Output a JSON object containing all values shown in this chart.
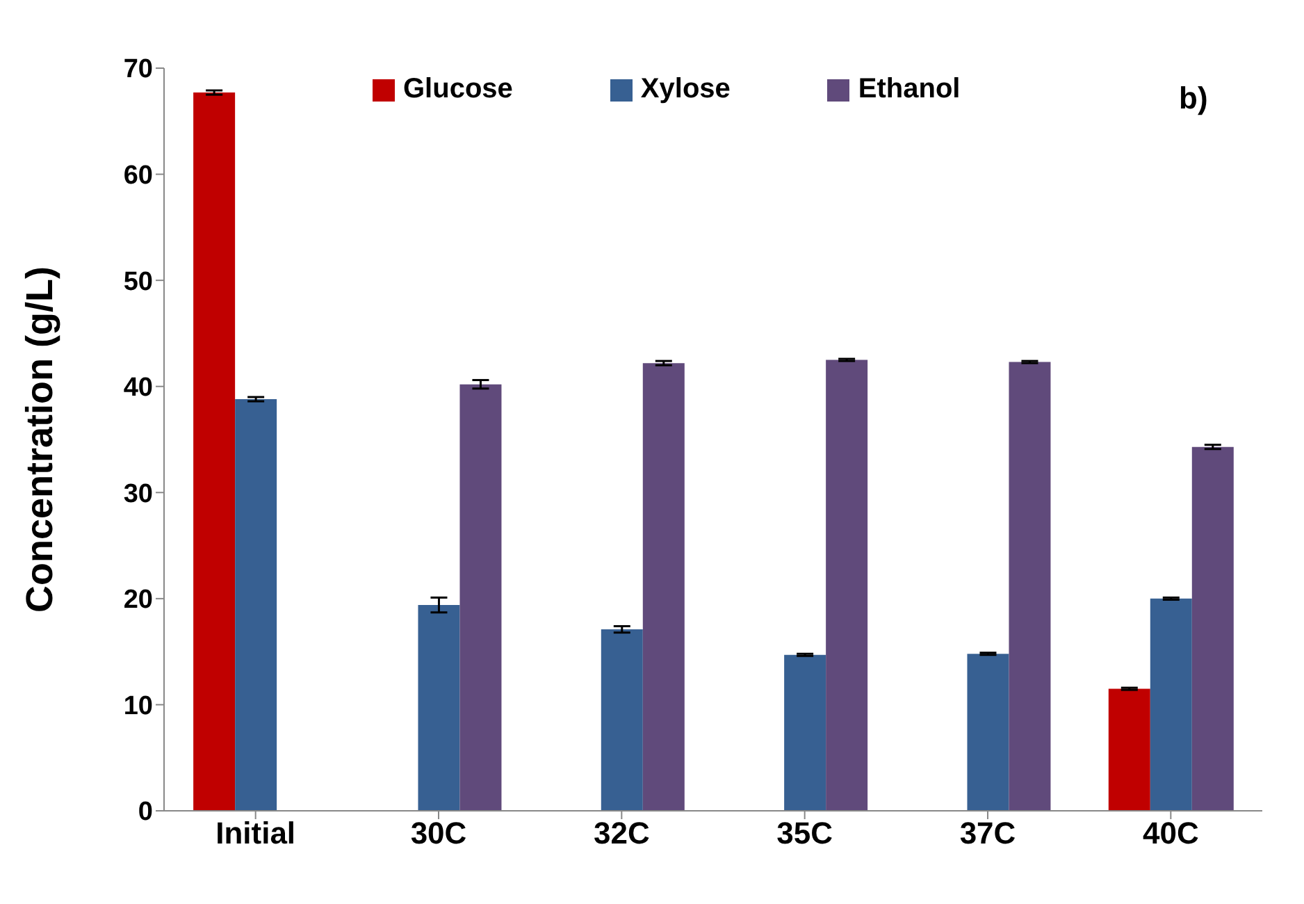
{
  "chart_data": {
    "type": "bar",
    "ylabel": "Concentration (g/L)",
    "categories": [
      "Initial",
      "30C",
      "32C",
      "35C",
      "37C",
      "40C"
    ],
    "series": [
      {
        "name": "Glucose",
        "color": "#c00000",
        "values": [
          67.7,
          0,
          0,
          0,
          0,
          11.5
        ],
        "errors": [
          0.2,
          null,
          null,
          null,
          null,
          0.1
        ]
      },
      {
        "name": "Xylose",
        "color": "#376092",
        "values": [
          38.8,
          19.4,
          17.1,
          14.7,
          14.8,
          20.0
        ],
        "errors": [
          0.2,
          0.7,
          0.3,
          0.1,
          0.1,
          0.1
        ]
      },
      {
        "name": "Ethanol",
        "color": "#604a7b",
        "values": [
          0,
          40.2,
          42.2,
          42.5,
          42.3,
          34.3
        ],
        "errors": [
          null,
          0.4,
          0.2,
          0.1,
          0.1,
          0.2
        ]
      }
    ],
    "ylim": [
      0,
      70
    ],
    "yticks": [
      0,
      10,
      20,
      30,
      40,
      50,
      60,
      70
    ],
    "grid": false,
    "legend": "top",
    "annotations": [
      "b)"
    ]
  }
}
